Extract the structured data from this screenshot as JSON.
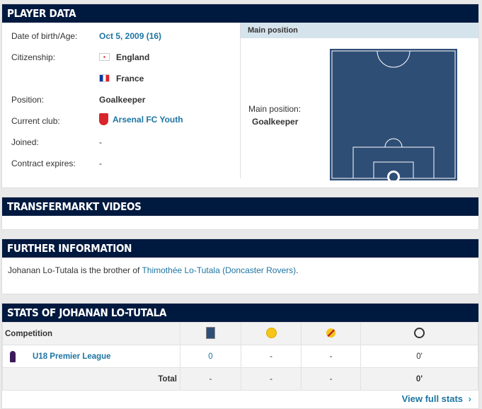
{
  "player_data": {
    "title": "PLAYER DATA",
    "rows": [
      {
        "label": "Date of birth/Age:",
        "value": "Oct 5, 2009 (16)"
      },
      {
        "label": "Citizenship:",
        "value": "England",
        "value2": "France"
      },
      {
        "label": "Position:",
        "value": "Goalkeeper"
      },
      {
        "label": "Current club:",
        "value": "Arsenal FC Youth"
      },
      {
        "label": "Joined:",
        "value": "-"
      },
      {
        "label": "Contract expires:",
        "value": "-"
      }
    ],
    "main_position_header": "Main position",
    "main_position_label": "Main position:",
    "main_position_value": "Goalkeeper",
    "pitch_color": "#2f4e76"
  },
  "videos": {
    "title": "TRANSFERMARKT VIDEOS"
  },
  "further": {
    "title": "FURTHER INFORMATION",
    "text_before": "Johanan Lo-Tutala is the brother of ",
    "link": "Thimothée Lo-Tutala (Doncaster Rovers)",
    "text_after": "."
  },
  "stats": {
    "title": "STATS OF JOHANAN LO-TUTALA",
    "col_competition": "Competition",
    "icons": [
      "pitch-icon",
      "goal-icon",
      "conceded-goal-icon",
      "clock-icon"
    ],
    "rows": [
      {
        "competition": "U18 Premier League",
        "apps": "0",
        "goals": "-",
        "conceded": "-",
        "minutes": "0'"
      }
    ],
    "total": {
      "label": "Total",
      "apps": "-",
      "goals": "-",
      "conceded": "-",
      "minutes": "0'"
    },
    "view_full": "View full stats"
  }
}
